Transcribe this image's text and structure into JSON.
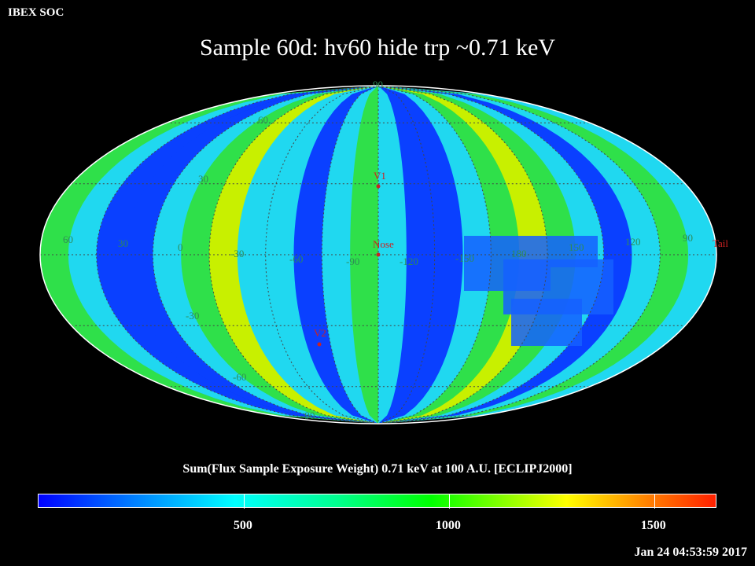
{
  "header": {
    "org": "IBEX SOC",
    "title": "Sample 60d: hv60 hide trp ~0.71 keV"
  },
  "map": {
    "projection": "Mollweide",
    "meridian_labels": [
      "60",
      "30",
      "0",
      "-30",
      "-60",
      "-90",
      "-120",
      "-150",
      "180",
      "150",
      "120",
      "90"
    ],
    "parallel_labels": [
      "90",
      "60",
      "30",
      "-30",
      "-60",
      "-90"
    ],
    "markers": [
      {
        "label": "V1",
        "color": "#cc2222"
      },
      {
        "label": "Nose",
        "color": "#cc2222"
      },
      {
        "label": "Tail",
        "color": "#cc2222"
      },
      {
        "label": "V2",
        "color": "#cc2222"
      }
    ],
    "label_color": "#2e8b57",
    "band_pattern": [
      "green",
      "lightblue",
      "blue",
      "blue",
      "lightblue",
      "green",
      "yellow",
      "lightblue",
      "lightblue",
      "blue",
      "lightblue",
      "green",
      "lightblue",
      "blue",
      "blue",
      "lightblue",
      "green",
      "yellow",
      "green",
      "lightblue",
      "blue",
      "lightblue",
      "green",
      "lightblue"
    ]
  },
  "colorbar": {
    "title": "Sum(Flux Sample Exposure Weight)  0.71 keV at 100 A.U. [ECLIPJ2000]",
    "ticks": [
      "500",
      "1000",
      "1500"
    ],
    "tick_values": [
      500,
      1000,
      1500
    ],
    "range": [
      0,
      1650
    ]
  },
  "footer": {
    "timestamp": "Jan 24 04:53:59 2017"
  }
}
